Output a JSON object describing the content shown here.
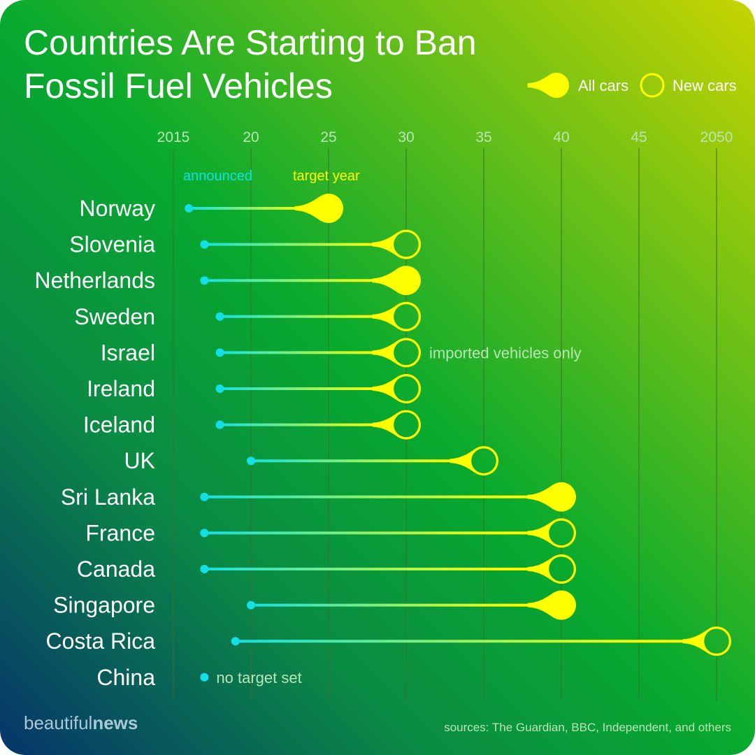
{
  "title_lines": [
    "Countries Are Starting to Ban",
    "Fossil Fuel Vehicles"
  ],
  "legend": {
    "all_cars": "All cars",
    "new_cars": "New cars"
  },
  "header_labels": {
    "announced": "announced",
    "target_year": "target year"
  },
  "brand": {
    "prefix": "beautiful",
    "suffix": "news"
  },
  "source_text": "sources: The Guardian, BBC, Independent, and others",
  "colors": {
    "bg_top_right": "#c8d400",
    "bg_mid": "#08aa2e",
    "bg_bottom_left": "#06346b",
    "announced": "#12e0e6",
    "target": "#ffff00",
    "gridline": "#3f6d2f",
    "text": "#ffffff",
    "muted": "#b9e6b6"
  },
  "chart_data": {
    "type": "dumbbell",
    "title": "Countries Are Starting to Ban Fossil Fuel Vehicles",
    "x_axis": {
      "range": [
        2015,
        2050
      ],
      "ticks": [
        2015,
        2020,
        2025,
        2030,
        2035,
        2040,
        2045,
        2050
      ],
      "tick_labels": [
        "2015",
        "20",
        "25",
        "30",
        "35",
        "40",
        "45",
        "2050"
      ]
    },
    "series_legend": [
      "All cars",
      "New cars"
    ],
    "rows": [
      {
        "country": "Norway",
        "announced": 2016,
        "target": 2025,
        "scope": "all"
      },
      {
        "country": "Slovenia",
        "announced": 2017,
        "target": 2030,
        "scope": "new"
      },
      {
        "country": "Netherlands",
        "announced": 2017,
        "target": 2030,
        "scope": "all"
      },
      {
        "country": "Sweden",
        "announced": 2018,
        "target": 2030,
        "scope": "new"
      },
      {
        "country": "Israel",
        "announced": 2018,
        "target": 2030,
        "scope": "new",
        "note": "imported vehicles only"
      },
      {
        "country": "Ireland",
        "announced": 2018,
        "target": 2030,
        "scope": "new"
      },
      {
        "country": "Iceland",
        "announced": 2018,
        "target": 2030,
        "scope": "new"
      },
      {
        "country": "UK",
        "announced": 2020,
        "target": 2035,
        "scope": "new"
      },
      {
        "country": "Sri Lanka",
        "announced": 2017,
        "target": 2040,
        "scope": "all"
      },
      {
        "country": "France",
        "announced": 2017,
        "target": 2040,
        "scope": "new"
      },
      {
        "country": "Canada",
        "announced": 2017,
        "target": 2040,
        "scope": "new"
      },
      {
        "country": "Singapore",
        "announced": 2020,
        "target": 2040,
        "scope": "all"
      },
      {
        "country": "Costa Rica",
        "announced": 2019,
        "target": 2050,
        "scope": "new"
      },
      {
        "country": "China",
        "announced": 2017,
        "target": null,
        "scope": null,
        "note": "no target set"
      }
    ]
  }
}
